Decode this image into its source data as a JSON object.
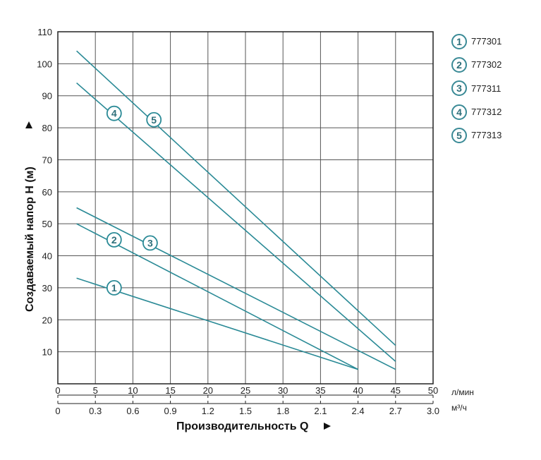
{
  "chart_data": {
    "type": "line",
    "xlabel": "Производительность Q",
    "ylabel": "Создаваемый напор H (м)",
    "x_unit": "л/мин",
    "x2_unit": "м³/ч",
    "xlim": [
      0,
      50
    ],
    "ylim": [
      0,
      110
    ],
    "x_ticks": [
      0,
      5,
      10,
      15,
      20,
      25,
      30,
      35,
      40,
      45,
      50
    ],
    "x2_ticks": [
      "0",
      "0.3",
      "0.6",
      "0.9",
      "1.2",
      "1.5",
      "1.8",
      "2.1",
      "2.4",
      "2.7",
      "3.0"
    ],
    "y_ticks": [
      10,
      20,
      30,
      40,
      50,
      60,
      70,
      80,
      90,
      100,
      110
    ],
    "grid": true,
    "series": [
      {
        "name": "777301",
        "marker": "1",
        "x": [
          2.5,
          40
        ],
        "y": [
          33,
          4.5
        ],
        "marker_at": [
          7.5,
          30
        ]
      },
      {
        "name": "777302",
        "marker": "2",
        "x": [
          2.5,
          40
        ],
        "y": [
          50,
          4.5
        ],
        "marker_at": [
          7.5,
          45
        ]
      },
      {
        "name": "777311",
        "marker": "3",
        "x": [
          2.5,
          45
        ],
        "y": [
          55,
          4.5
        ],
        "marker_at": [
          12.3,
          44
        ]
      },
      {
        "name": "777312",
        "marker": "4",
        "x": [
          2.5,
          45
        ],
        "y": [
          94,
          7
        ],
        "marker_at": [
          7.5,
          84.5
        ]
      },
      {
        "name": "777313",
        "marker": "5",
        "x": [
          2.5,
          45
        ],
        "y": [
          104,
          12
        ],
        "marker_at": [
          12.8,
          82.5
        ]
      }
    ],
    "line_color": "#2a8a96"
  }
}
